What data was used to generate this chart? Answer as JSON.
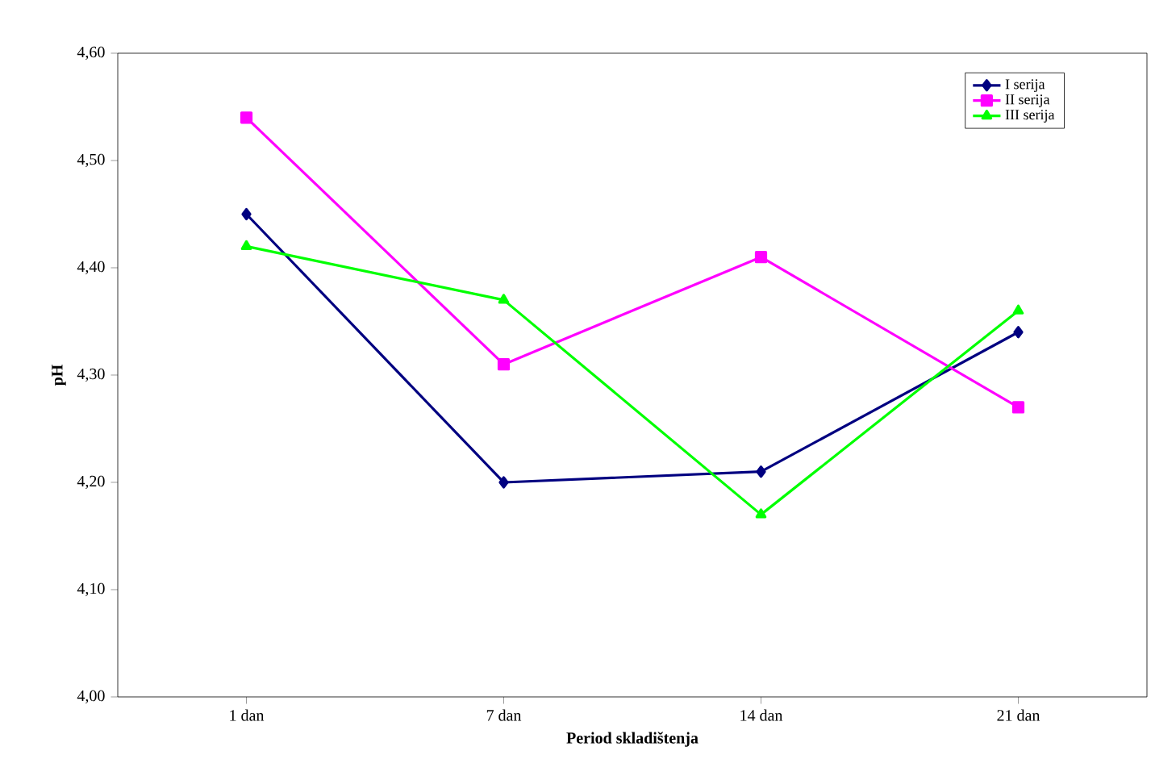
{
  "chart_data": {
    "type": "line",
    "xlabel": "Period skladištenja",
    "ylabel": "pH",
    "categories": [
      "1 dan",
      "7 dan",
      "14 dan",
      "21 dan"
    ],
    "series": [
      {
        "name": "I serija",
        "color": "#000080",
        "marker": "diamond",
        "values": [
          4.45,
          4.2,
          4.21,
          4.34
        ]
      },
      {
        "name": "II serija",
        "color": "#ff00ff",
        "marker": "square",
        "values": [
          4.54,
          4.31,
          4.41,
          4.27
        ]
      },
      {
        "name": "III serija",
        "color": "#00ff00",
        "marker": "triangle",
        "values": [
          4.42,
          4.37,
          4.17,
          4.36
        ]
      }
    ],
    "ylim": [
      4.0,
      4.6
    ],
    "yticks": [
      {
        "value": 4.0,
        "label": "4,00"
      },
      {
        "value": 4.1,
        "label": "4,10"
      },
      {
        "value": 4.2,
        "label": "4,20"
      },
      {
        "value": 4.3,
        "label": "4,30"
      },
      {
        "value": 4.4,
        "label": "4,40"
      },
      {
        "value": 4.5,
        "label": "4,50"
      },
      {
        "value": 4.6,
        "label": "4,60"
      }
    ],
    "legend": "top right",
    "grid": false,
    "line_style": "solid"
  }
}
